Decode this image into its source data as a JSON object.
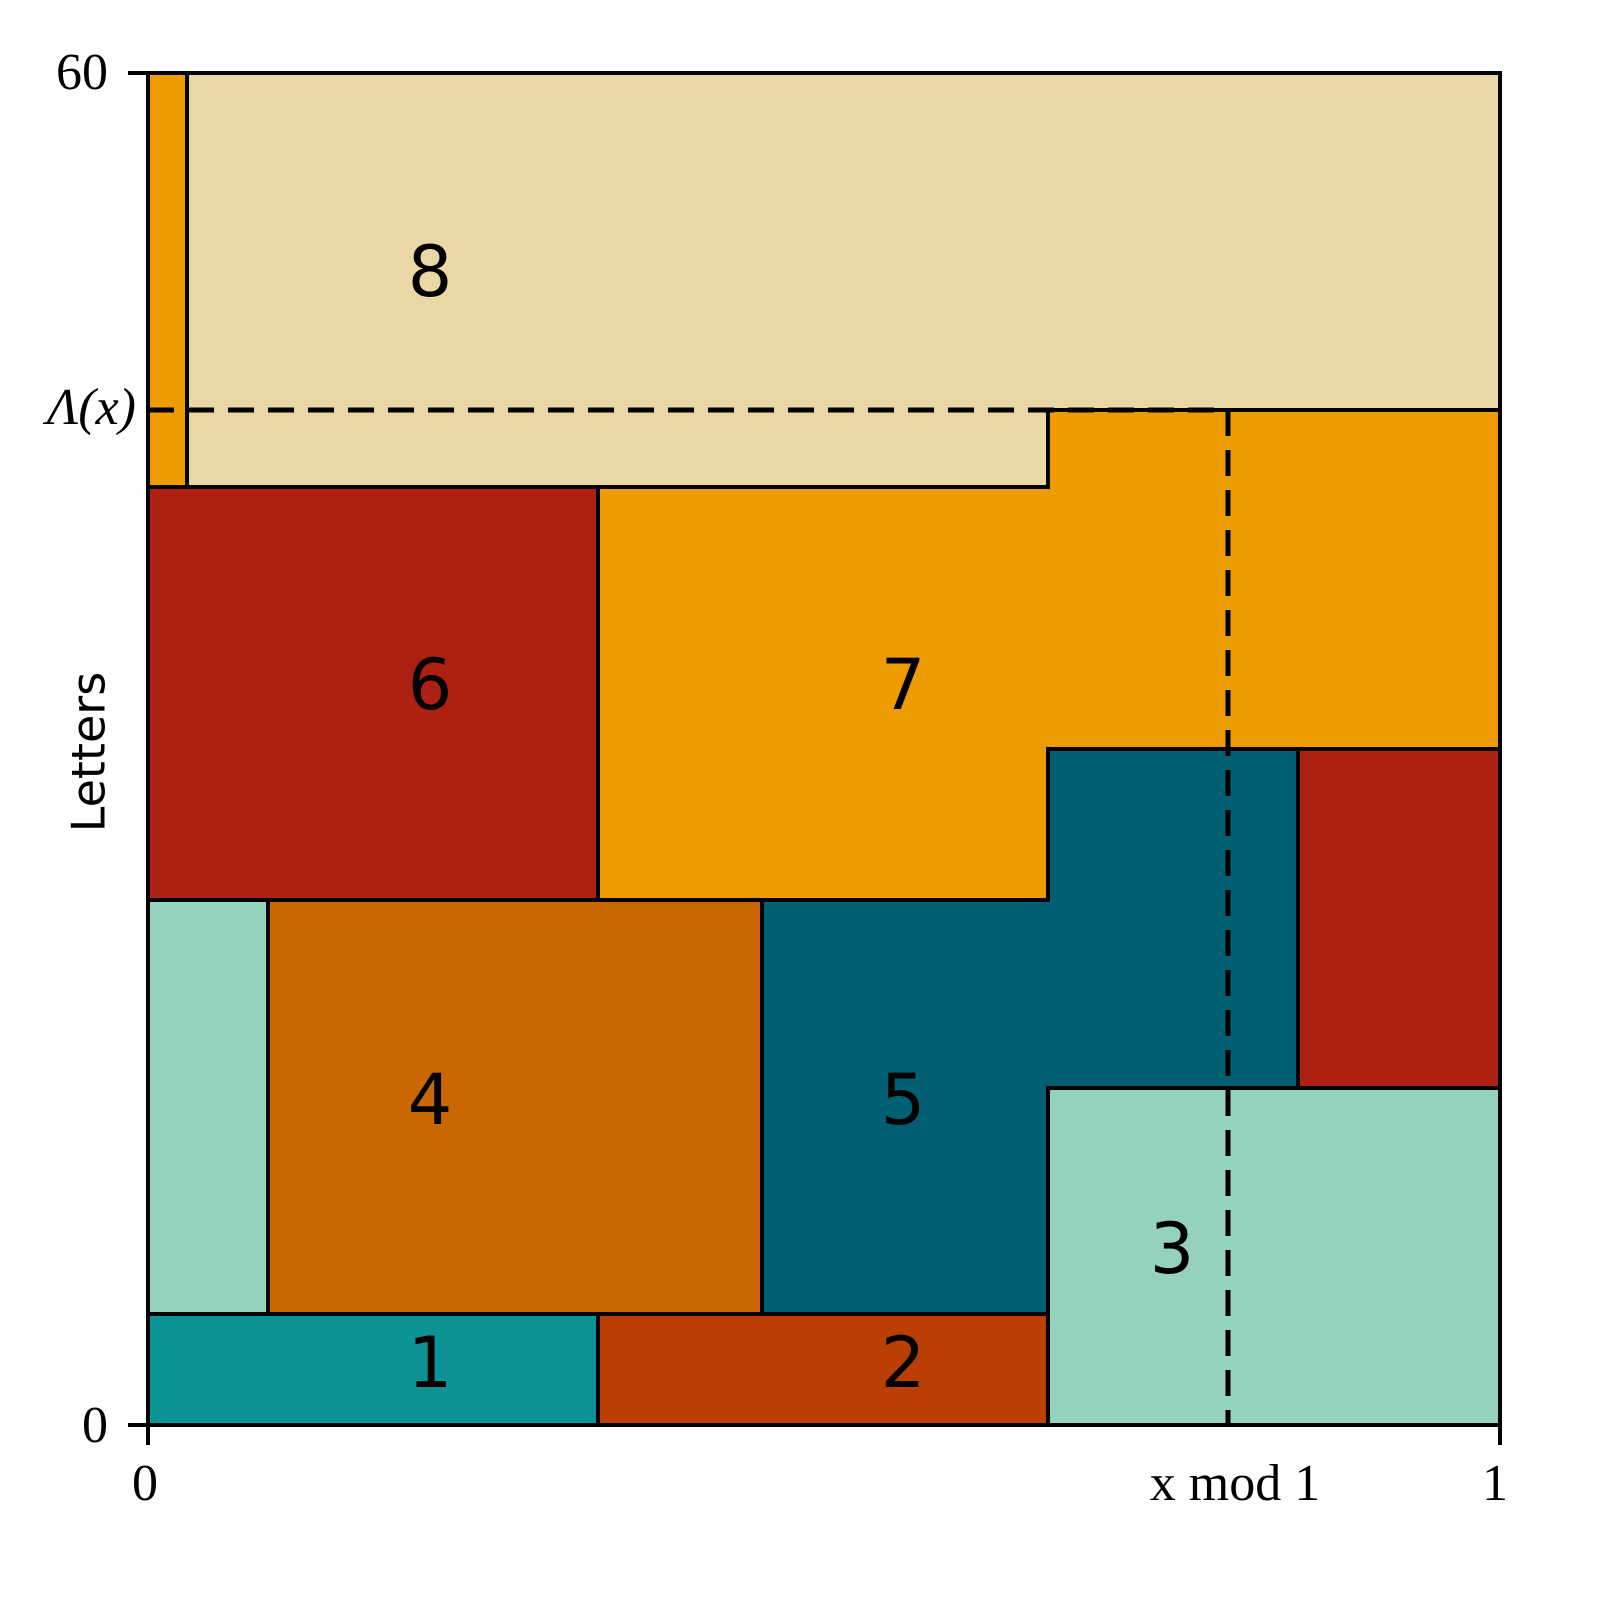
{
  "axes": {
    "y_top": "60",
    "y_bottom": "0",
    "y_marker": "Λ(x)",
    "y_label": "Letters",
    "x_left": "0",
    "x_marker": "x mod 1",
    "x_right": "1"
  },
  "regions": [
    {
      "label": "1"
    },
    {
      "label": "2"
    },
    {
      "label": "3"
    },
    {
      "label": "4"
    },
    {
      "label": "5"
    },
    {
      "label": "6"
    },
    {
      "label": "7"
    },
    {
      "label": "8"
    }
  ]
}
